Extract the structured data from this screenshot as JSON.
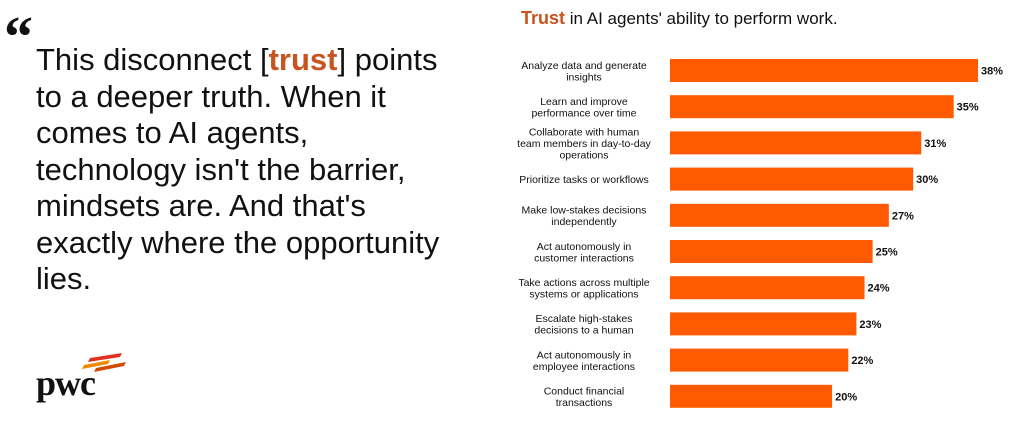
{
  "quote": {
    "mark": "“",
    "before": "This disconnect [",
    "highlight": "trust",
    "after": "] points to a deeper truth. When it comes to AI agents, technology isn't the barrier, mindsets are. And that's exactly where the opportunity lies."
  },
  "logo": {
    "text": "pwc",
    "bar_colors": [
      "#e0301e",
      "#eb8c00",
      "#d04a02"
    ]
  },
  "chart_title": {
    "highlight": "Trust",
    "rest": " in AI agents' ability to perform work."
  },
  "colors": {
    "accent": "#c8541f",
    "bar": "#ff5a00",
    "text": "#111111"
  },
  "chart_data": {
    "type": "bar",
    "orientation": "horizontal",
    "title": "Trust in AI agents' ability to perform work.",
    "value_suffix": "%",
    "xlim": [
      0,
      38
    ],
    "grid": false,
    "legend": "none",
    "categories": [
      [
        "Analyze data and generate",
        "insights"
      ],
      [
        "Learn and improve",
        "performance over time"
      ],
      [
        "Collaborate with human",
        "team members in day-to-day",
        "operations"
      ],
      [
        "Prioritize tasks or workflows"
      ],
      [
        "Make low-stakes decisions",
        "independently"
      ],
      [
        "Act autonomously in",
        "customer interactions"
      ],
      [
        "Take actions across multiple",
        "systems or applications"
      ],
      [
        "Escalate high-stakes",
        "decisions to a human"
      ],
      [
        "Act autonomously in",
        "employee interactions"
      ],
      [
        "Conduct financial",
        "transactions"
      ]
    ],
    "values": [
      38,
      35,
      31,
      30,
      27,
      25,
      24,
      23,
      22,
      20
    ]
  }
}
